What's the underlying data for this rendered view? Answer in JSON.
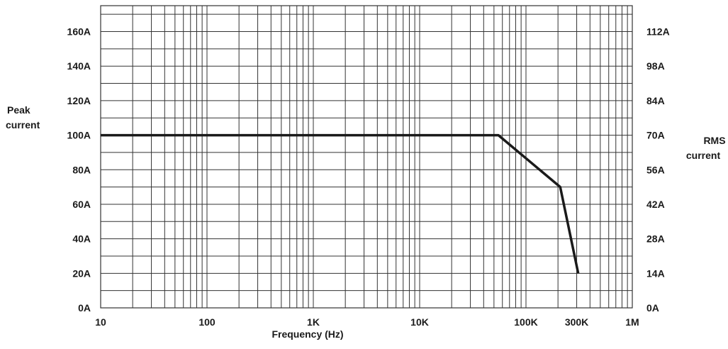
{
  "chart_data": {
    "type": "line",
    "x_scale": "log",
    "xlim": [
      10,
      1000000
    ],
    "ylim": [
      0,
      175
    ],
    "y_right_ratio": 0.7,
    "grid": true,
    "legend": "none",
    "xlabel": "Frequency (Hz)",
    "ylabel_left": [
      "Peak",
      "current"
    ],
    "ylabel_right": [
      "RMS",
      "current"
    ],
    "x_ticks": [
      {
        "value": 10,
        "label": "10"
      },
      {
        "value": 100,
        "label": "100"
      },
      {
        "value": 1000,
        "label": "1K"
      },
      {
        "value": 10000,
        "label": "10K"
      },
      {
        "value": 100000,
        "label": "100K"
      },
      {
        "value": 300000,
        "label": "300K"
      },
      {
        "value": 1000000,
        "label": "1M"
      }
    ],
    "y_left_ticks": [
      {
        "value": 0,
        "label": "0A"
      },
      {
        "value": 20,
        "label": "20A"
      },
      {
        "value": 40,
        "label": "40A"
      },
      {
        "value": 60,
        "label": "60A"
      },
      {
        "value": 80,
        "label": "80A"
      },
      {
        "value": 100,
        "label": "100A"
      },
      {
        "value": 120,
        "label": "120A"
      },
      {
        "value": 140,
        "label": "140A"
      },
      {
        "value": 160,
        "label": "160A"
      }
    ],
    "y_right_ticks": [
      {
        "value": 0,
        "label": "0A"
      },
      {
        "value": 20,
        "label": "14A"
      },
      {
        "value": 40,
        "label": "28A"
      },
      {
        "value": 60,
        "label": "42A"
      },
      {
        "value": 80,
        "label": "56A"
      },
      {
        "value": 100,
        "label": "70A"
      },
      {
        "value": 120,
        "label": "84A"
      },
      {
        "value": 140,
        "label": "98A"
      },
      {
        "value": 160,
        "label": "112A"
      }
    ],
    "series": [
      {
        "color": "#1a1a1a",
        "x": [
          10,
          55000,
          210000,
          310000
        ],
        "y": [
          100,
          100,
          70,
          20
        ]
      }
    ]
  }
}
